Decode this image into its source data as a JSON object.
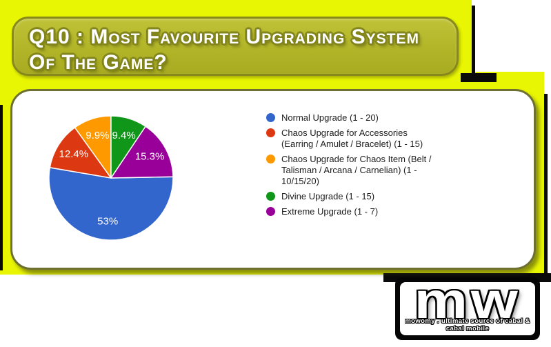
{
  "page": {
    "background": "#ffffff",
    "accent_yellow": "#e9f603",
    "banner_fill": "#b2b528",
    "panel_border": "#6d7031"
  },
  "title_banner": {
    "lines": [
      "Q10 : Most Favourite Upgrading System",
      "Of The Game?"
    ]
  },
  "chart_data": {
    "type": "pie",
    "title": "Q10 : Most favourite upgrading system of the game?",
    "legend_position": "right",
    "start_angle_deg": 88.9,
    "label_radius_ratio": 0.71,
    "series": [
      {
        "label": "Normal Upgrade (1 - 20)",
        "value": 53,
        "display": "53%",
        "color": "#3366CC",
        "legend_lines": [
          "Normal Upgrade (1 - 20)"
        ]
      },
      {
        "label": "Chaos Upgrade for Accessories (Earring / Amulet / Bracelet) (1 - 15)",
        "value": 12.4,
        "display": "12.4%",
        "color": "#DC3912",
        "legend_lines": [
          "Chaos Upgrade for Accessories",
          "(Earring / Amulet / Bracelet) (1 - 15)"
        ]
      },
      {
        "label": "Chaos Upgrade for Chaos Item (Belt / Talisman / Arcana / Carnelian) (1 - 10/15/20)",
        "value": 9.9,
        "display": "9.9%",
        "color": "#FF9900",
        "legend_lines": [
          "Chaos Upgrade for Chaos Item (Belt /",
          "Talisman / Arcana / Carnelian) (1 -",
          "10/15/20)"
        ]
      },
      {
        "label": "Divine Upgrade (1 - 15)",
        "value": 9.4,
        "display": "9.4%",
        "color": "#109618",
        "legend_lines": [
          "Divine Upgrade (1 - 15)"
        ]
      },
      {
        "label": "Extreme Upgrade (1 - 7)",
        "value": 15.3,
        "display": "15.3%",
        "color": "#990099",
        "legend_lines": [
          "Extreme Upgrade (1 - 7)"
        ]
      }
    ]
  },
  "logo": {
    "initials": "mw",
    "tagline": "mowomy . ultimate source of cabal & cabal mobile"
  }
}
